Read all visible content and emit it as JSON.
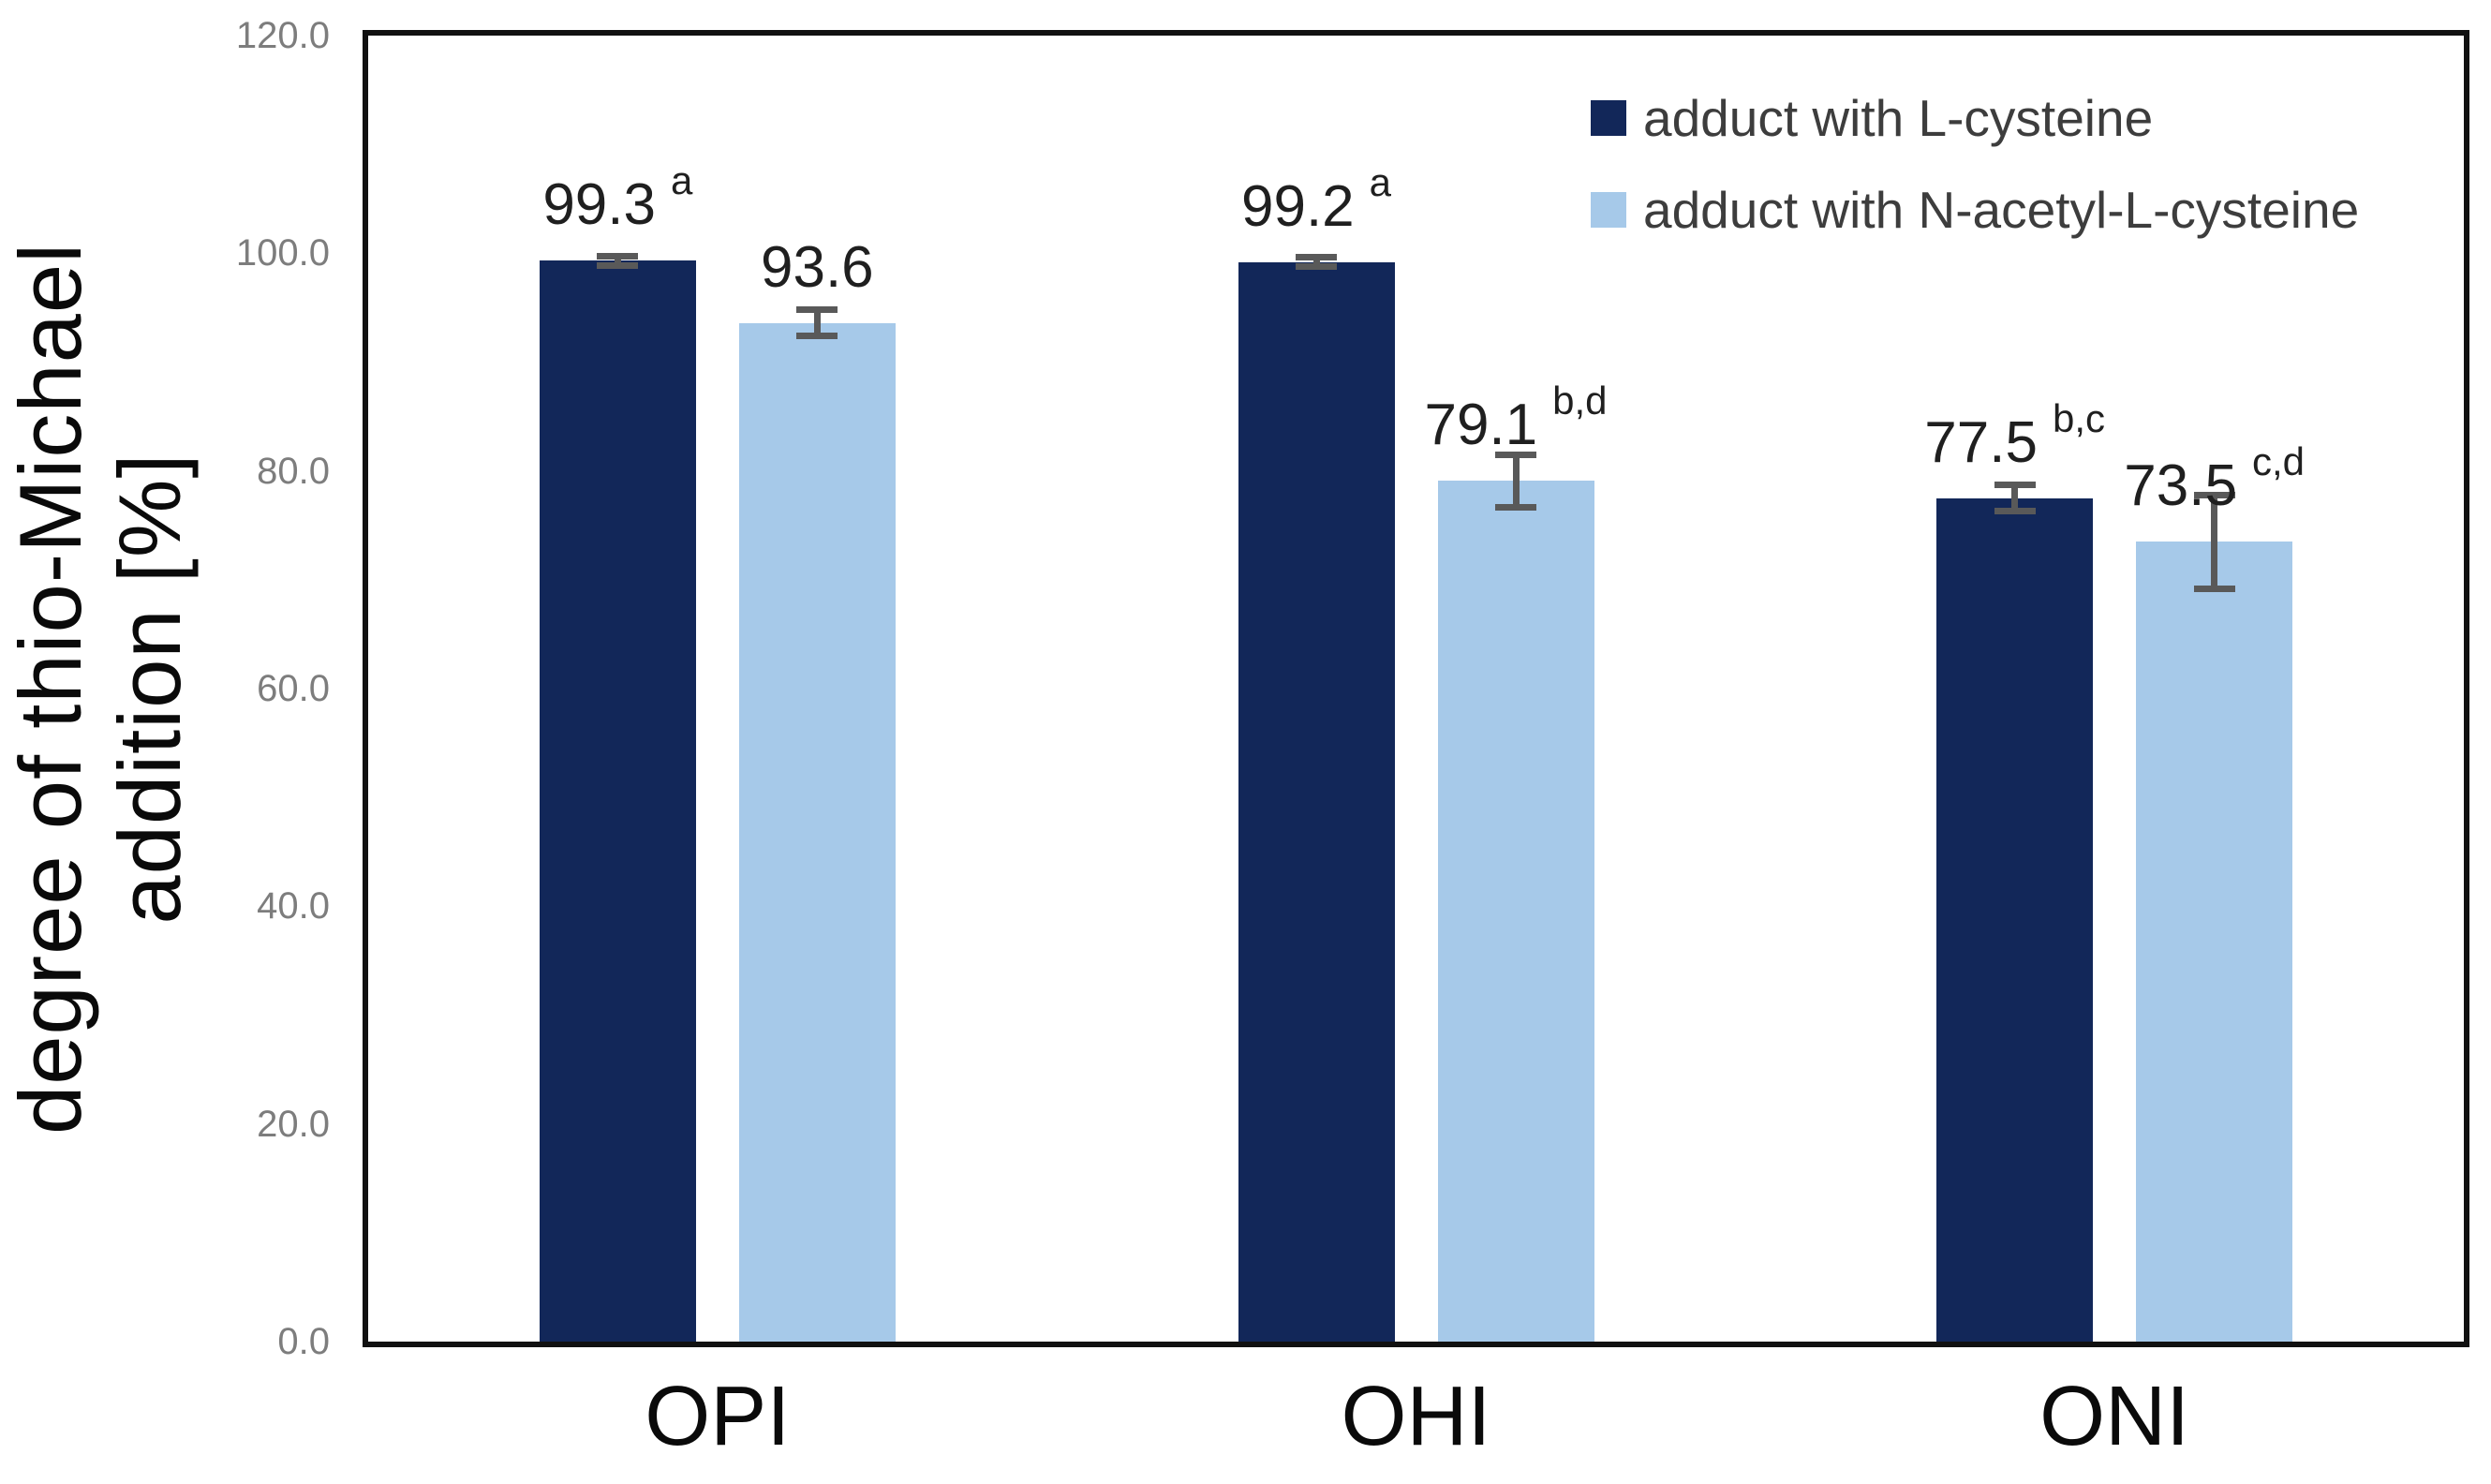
{
  "chart_data": {
    "type": "bar",
    "title": "",
    "y_axis_label_lines": [
      "degree of thio-Michael",
      "addition [%]"
    ],
    "categories": [
      "OPI",
      "OHI",
      "ONI"
    ],
    "series": [
      {
        "name": "adduct with L-cysteine",
        "color": "#122759",
        "values": [
          99.3,
          99.2,
          77.5
        ],
        "value_labels": [
          "99.3",
          "99.2",
          "77.5"
        ],
        "errors": [
          0.4,
          0.4,
          1.2
        ],
        "superscripts": [
          "a",
          "a",
          "b,c"
        ]
      },
      {
        "name": "adduct with N-acetyl-L-cysteine",
        "color": "#a6c9e9",
        "values": [
          93.6,
          79.1,
          73.5
        ],
        "value_labels": [
          "93.6",
          "79.1",
          "73.5"
        ],
        "errors": [
          1.2,
          2.4,
          4.3
        ],
        "superscripts": [
          "",
          "b,d",
          "c,d"
        ]
      }
    ],
    "y_axis": {
      "min": 0,
      "max": 120,
      "step": 20,
      "tick_labels": [
        "0.0",
        "20.0",
        "40.0",
        "60.0",
        "80.0",
        "100.0",
        "120.0"
      ]
    },
    "legend_position": "top-right",
    "grid": false,
    "error_bar_color": "#595959",
    "axis_color": "#111111"
  }
}
